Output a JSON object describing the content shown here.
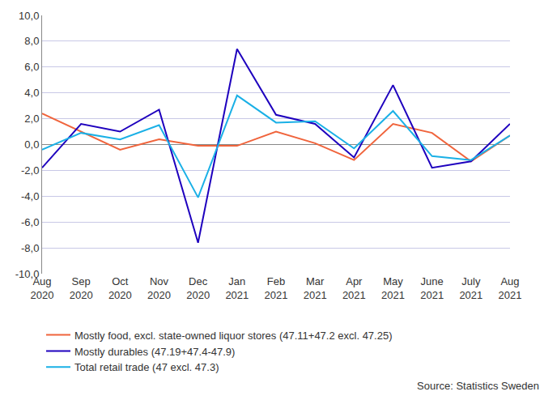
{
  "chart_data": {
    "type": "line",
    "categories": [
      "Aug 2020",
      "Sep 2020",
      "Oct 2020",
      "Nov 2020",
      "Dec 2020",
      "Jan 2021",
      "Feb 2021",
      "Mar 2021",
      "Apr 2021",
      "May 2021",
      "June 2021",
      "July 2021",
      "Aug 2021"
    ],
    "series": [
      {
        "name": "Mostly food, excl. state-owned liquor stores (47.11+47.2 excl. 47.25)",
        "color": "#f0643c",
        "values": [
          2.4,
          1.0,
          -0.4,
          0.4,
          -0.1,
          -0.1,
          1.0,
          0.1,
          -1.2,
          1.6,
          0.9,
          -1.3,
          0.7
        ]
      },
      {
        "name": "Mostly durables (47.19+47.4-47.9)",
        "color": "#1e00be",
        "values": [
          -1.8,
          1.6,
          1.0,
          2.7,
          -7.6,
          7.4,
          2.3,
          1.6,
          -1.0,
          4.6,
          -1.8,
          -1.3,
          1.6
        ]
      },
      {
        "name": "Total retail trade (47 excl. 47.3)",
        "color": "#1ab0e6",
        "values": [
          -0.4,
          0.9,
          0.4,
          1.5,
          -4.1,
          3.8,
          1.7,
          1.8,
          -0.3,
          2.6,
          -0.9,
          -1.2,
          0.7
        ]
      }
    ],
    "ylim": [
      -10,
      10
    ],
    "yticks": [
      {
        "value": -10,
        "label": "-10,0"
      },
      {
        "value": -8,
        "label": "-8,0"
      },
      {
        "value": -6,
        "label": "-6,0"
      },
      {
        "value": -4,
        "label": "-4,0"
      },
      {
        "value": -2,
        "label": "-2,0"
      },
      {
        "value": 0,
        "label": "0,0"
      },
      {
        "value": 2,
        "label": "2,0"
      },
      {
        "value": 4,
        "label": "4,0"
      },
      {
        "value": 6,
        "label": "6,0"
      },
      {
        "value": 8,
        "label": "8,0"
      },
      {
        "value": 10,
        "label": "10,0"
      }
    ],
    "grid": true,
    "legend": "bottom",
    "annotations": [
      {
        "text": "Source: Statistics Sweden"
      }
    ]
  }
}
